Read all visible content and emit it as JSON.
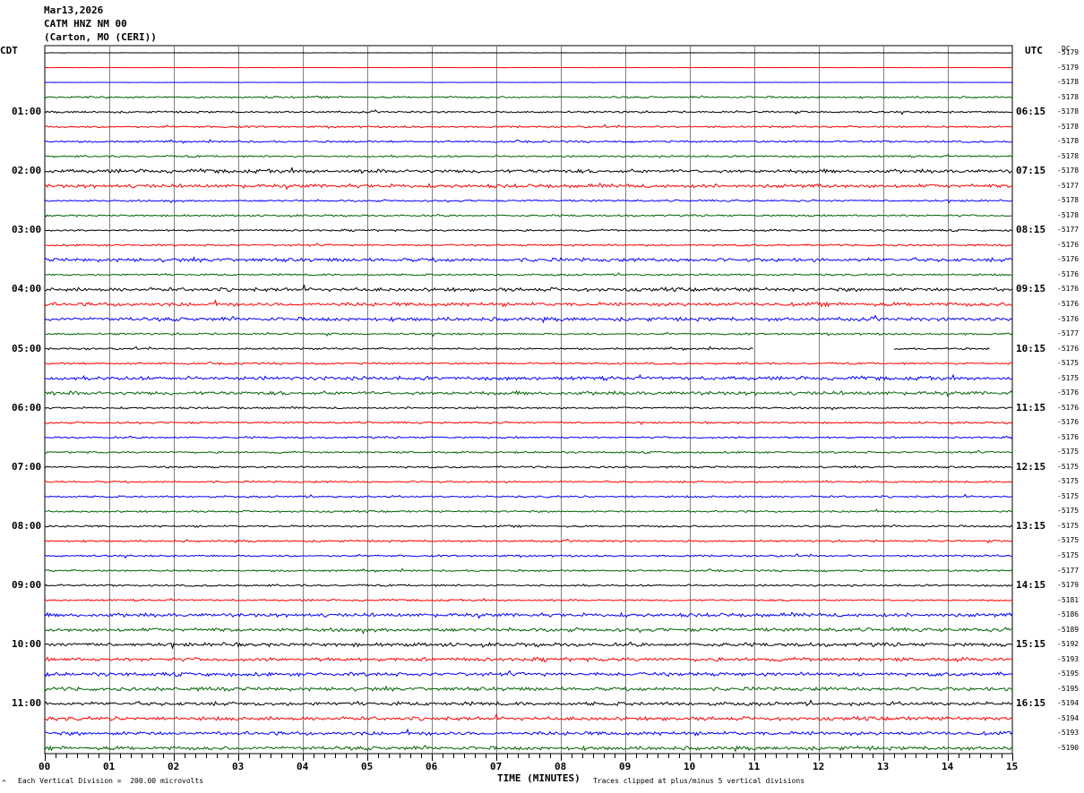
{
  "header": {
    "date": "Mar13,2026",
    "station": "CATM HNZ NM 00",
    "location": "(Carton, MO (CERI))"
  },
  "left_axis_label": "CDT",
  "right_axis_label": "UTC",
  "dc_label": "DC",
  "x_axis_title": "TIME (MINUTES)",
  "footer": {
    "scale_note": "Each Vertical Division =  200.00 microvolts",
    "clip_note": "Traces clipped at plus/minus 5 vertical divisions",
    "corner_mark": "^"
  },
  "colors": {
    "trace_cycle": [
      "#000000",
      "#ff0000",
      "#0000ff",
      "#006400"
    ],
    "grid": "#808080",
    "frame": "#000000"
  },
  "chart_data": {
    "type": "line",
    "title": "CATM HNZ NM 00",
    "xlabel": "TIME (MINUTES)",
    "xlim": [
      0,
      15
    ],
    "x_ticks": [
      "00",
      "01",
      "02",
      "03",
      "04",
      "05",
      "06",
      "07",
      "08",
      "09",
      "10",
      "11",
      "12",
      "13",
      "14",
      "15"
    ],
    "cdt_labels": [
      "01:00",
      "02:00",
      "03:00",
      "04:00",
      "05:00",
      "06:00",
      "07:00",
      "08:00",
      "09:00",
      "10:00",
      "11:00"
    ],
    "utc_labels": [
      "06:15",
      "07:15",
      "08:15",
      "09:15",
      "10:15",
      "11:15",
      "12:15",
      "13:15",
      "14:15",
      "15:15",
      "16:15"
    ],
    "dc_offsets": [
      "-5179",
      "-5179",
      "-5178",
      "-5178",
      "-5178",
      "-5178",
      "-5178",
      "-5178",
      "-5178",
      "-5177",
      "-5178",
      "-5178",
      "-5177",
      "-5176",
      "-5176",
      "-5176",
      "-5176",
      "-5176",
      "-5176",
      "-5177",
      "-5176",
      "-5175",
      "-5175",
      "-5176",
      "-5176",
      "-5176",
      "-5176",
      "-5175",
      "-5175",
      "-5175",
      "-5175",
      "-5175",
      "-5175",
      "-5175",
      "-5175",
      "-5177",
      "-5179",
      "-5181",
      "-5186",
      "-5189",
      "-5192",
      "-5193",
      "-5195",
      "-5195",
      "-5194",
      "-5194",
      "-5193",
      "-5190"
    ],
    "amplitude_level": [
      0,
      0,
      0,
      1,
      1,
      1,
      1,
      1,
      2,
      2,
      1,
      1,
      1,
      1,
      2,
      1,
      2,
      2,
      2,
      1,
      1,
      1,
      2,
      2,
      1,
      1,
      1,
      1,
      1,
      1,
      1,
      1,
      1,
      1,
      1,
      1,
      1,
      1,
      2,
      2,
      2,
      2,
      2,
      2,
      2,
      2,
      2,
      2
    ],
    "gaps": [
      {
        "row": 20,
        "from_minute": 11.0,
        "to_minute": 13.15
      },
      {
        "row": 20,
        "from_minute": 14.65,
        "to_minute": 15.0
      }
    ],
    "scale": "200.00 microvolts per vertical division",
    "grid": true
  }
}
